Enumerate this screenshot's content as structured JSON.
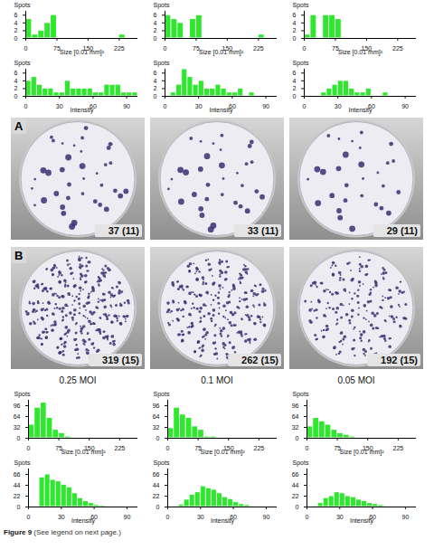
{
  "chart_data": [
    {
      "type": "histogram",
      "ylabel": "Spots",
      "xlabel": "Size [0.01 mm]²",
      "color": "#2ee82e",
      "bins": [
        0,
        15,
        30,
        45,
        60,
        75,
        90,
        105,
        120,
        135,
        150,
        165,
        180,
        195,
        210,
        225,
        240,
        255,
        270
      ],
      "counts": [
        5,
        1,
        2,
        4,
        6,
        0,
        0,
        0,
        0,
        0,
        0,
        0,
        0,
        0,
        0,
        1,
        0,
        0
      ],
      "xlim": [
        0,
        270
      ],
      "xticks": [
        0,
        75,
        150,
        225
      ],
      "ylim": [
        0,
        7
      ],
      "yticks": [
        0,
        2,
        4,
        6
      ]
    },
    {
      "type": "histogram",
      "ylabel": "Spots",
      "xlabel": "Size [0.01 mm]²",
      "color": "#2ee82e",
      "bins": [
        0,
        15,
        30,
        45,
        60,
        75,
        90,
        105,
        120,
        135,
        150,
        165,
        180,
        195,
        210,
        225,
        240,
        255,
        270
      ],
      "counts": [
        6,
        5,
        4,
        0,
        5,
        6,
        0,
        0,
        0,
        0,
        0,
        0,
        0,
        0,
        0,
        1,
        0,
        0
      ],
      "xlim": [
        0,
        270
      ],
      "xticks": [
        0,
        75,
        150,
        225
      ],
      "ylim": [
        0,
        7
      ],
      "yticks": [
        0,
        2,
        4,
        6
      ]
    },
    {
      "type": "histogram",
      "ylabel": "Spots",
      "xlabel": "Size [0.01 mm]²",
      "color": "#2ee82e",
      "bins": [
        0,
        15,
        30,
        45,
        60,
        75,
        90,
        105,
        120,
        135,
        150,
        165,
        180,
        195,
        210,
        225,
        240,
        255,
        270
      ],
      "counts": [
        1,
        6,
        0,
        6,
        6,
        5,
        0,
        0,
        0,
        0,
        0,
        0,
        0,
        0,
        0,
        0,
        0,
        0
      ],
      "xlim": [
        0,
        270
      ],
      "xticks": [
        0,
        75,
        150,
        225
      ],
      "ylim": [
        0,
        7
      ],
      "yticks": [
        0,
        2,
        4,
        6
      ]
    },
    {
      "type": "histogram",
      "ylabel": "Spots",
      "xlabel": "Intensity",
      "color": "#2ee82e",
      "bins": [
        0,
        5,
        10,
        15,
        20,
        25,
        30,
        35,
        40,
        45,
        50,
        55,
        60,
        65,
        70,
        75,
        80,
        85,
        90,
        95,
        100
      ],
      "counts": [
        4,
        5,
        3,
        2,
        2,
        1,
        1,
        4,
        2,
        2,
        2,
        2,
        1,
        1,
        3,
        3,
        3,
        1,
        1,
        1
      ],
      "xlim": [
        0,
        100
      ],
      "xticks": [
        0,
        30,
        60,
        90
      ],
      "ylim": [
        0,
        7
      ],
      "yticks": [
        0,
        2,
        4,
        6
      ]
    },
    {
      "type": "histogram",
      "ylabel": "Spots",
      "xlabel": "Intensity",
      "color": "#2ee82e",
      "bins": [
        0,
        5,
        10,
        15,
        20,
        25,
        30,
        35,
        40,
        45,
        50,
        55,
        60,
        65,
        70,
        75,
        80,
        85,
        90,
        95,
        100
      ],
      "counts": [
        0,
        1,
        3,
        7,
        5,
        3,
        4,
        2,
        2,
        3,
        2,
        1,
        1,
        2,
        0,
        1,
        0,
        0,
        0,
        0
      ],
      "xlim": [
        0,
        100
      ],
      "xticks": [
        0,
        30,
        60,
        90
      ],
      "ylim": [
        0,
        7
      ],
      "yticks": [
        0,
        2,
        4,
        6
      ]
    },
    {
      "type": "histogram",
      "ylabel": "Spots",
      "xlabel": "Intensity",
      "color": "#2ee82e",
      "bins": [
        0,
        5,
        10,
        15,
        20,
        25,
        30,
        35,
        40,
        45,
        50,
        55,
        60,
        65,
        70,
        75,
        80,
        85,
        90,
        95,
        100
      ],
      "counts": [
        0,
        0,
        0,
        1,
        2,
        3,
        4,
        4,
        2,
        1,
        1,
        2,
        0,
        0,
        1,
        0,
        0,
        0,
        0,
        0
      ],
      "xlim": [
        0,
        100
      ],
      "xticks": [
        0,
        30,
        60,
        90
      ],
      "ylim": [
        0,
        7
      ],
      "yticks": [
        0,
        2,
        4,
        6
      ]
    },
    {
      "type": "histogram",
      "ylabel": "Spots",
      "xlabel": "Size [0.01 mm]²",
      "color": "#2ee82e",
      "bins": [
        0,
        15,
        30,
        45,
        60,
        75,
        90,
        105,
        120,
        135,
        150,
        165,
        180,
        195,
        210,
        225,
        240,
        255,
        270
      ],
      "counts": [
        40,
        90,
        105,
        60,
        25,
        15,
        5,
        0,
        0,
        0,
        0,
        0,
        0,
        0,
        0,
        0,
        0,
        0
      ],
      "xlim": [
        0,
        270
      ],
      "xticks": [
        0,
        75,
        150,
        225
      ],
      "ylim": [
        0,
        112
      ],
      "yticks": [
        0,
        32,
        64,
        96
      ]
    },
    {
      "type": "histogram",
      "ylabel": "Spots",
      "xlabel": "Size [0.01 mm]²",
      "color": "#2ee82e",
      "bins": [
        0,
        15,
        30,
        45,
        60,
        75,
        90,
        105,
        120,
        135,
        150,
        165,
        180,
        195,
        210,
        225,
        240,
        255,
        270
      ],
      "counts": [
        30,
        90,
        70,
        60,
        35,
        25,
        5,
        5,
        0,
        0,
        0,
        0,
        0,
        0,
        0,
        0,
        0,
        0
      ],
      "xlim": [
        0,
        270
      ],
      "xticks": [
        0,
        75,
        150,
        225
      ],
      "ylim": [
        0,
        112
      ],
      "yticks": [
        0,
        32,
        64,
        96
      ]
    },
    {
      "type": "histogram",
      "ylabel": "Spots",
      "xlabel": "Size [0.01 mm]²",
      "color": "#2ee82e",
      "bins": [
        0,
        15,
        30,
        45,
        60,
        75,
        90,
        105,
        120,
        135,
        150,
        165,
        180,
        195,
        210,
        225,
        240,
        255,
        270
      ],
      "counts": [
        35,
        60,
        50,
        40,
        25,
        15,
        10,
        5,
        0,
        0,
        0,
        0,
        0,
        0,
        0,
        0,
        0,
        0
      ],
      "xlim": [
        0,
        270
      ],
      "xticks": [
        0,
        75,
        150,
        225
      ],
      "ylim": [
        0,
        112
      ],
      "yticks": [
        0,
        32,
        64,
        96
      ]
    },
    {
      "type": "histogram",
      "ylabel": "Spots",
      "xlabel": "Intensity",
      "color": "#2ee82e",
      "bins": [
        0,
        5,
        10,
        15,
        20,
        25,
        30,
        35,
        40,
        45,
        50,
        55,
        60,
        65,
        70,
        75,
        80,
        85,
        90,
        95,
        100
      ],
      "counts": [
        0,
        0,
        60,
        66,
        55,
        52,
        45,
        40,
        28,
        18,
        12,
        8,
        4,
        3,
        2,
        1,
        1,
        0,
        0,
        0
      ],
      "xlim": [
        0,
        100
      ],
      "xticks": [
        0,
        30,
        60,
        90
      ],
      "ylim": [
        0,
        77
      ],
      "yticks": [
        0,
        22,
        44,
        66
      ]
    },
    {
      "type": "histogram",
      "ylabel": "Spots",
      "xlabel": "Intensity",
      "color": "#2ee82e",
      "bins": [
        0,
        5,
        10,
        15,
        20,
        25,
        30,
        35,
        40,
        45,
        50,
        55,
        60,
        65,
        70,
        75,
        80,
        85,
        90,
        95,
        100
      ],
      "counts": [
        0,
        0,
        5,
        15,
        25,
        30,
        42,
        38,
        35,
        28,
        20,
        16,
        10,
        6,
        4,
        2,
        1,
        0,
        0,
        0
      ],
      "xlim": [
        0,
        100
      ],
      "xticks": [
        0,
        30,
        60,
        90
      ],
      "ylim": [
        0,
        77
      ],
      "yticks": [
        0,
        22,
        44,
        66
      ]
    },
    {
      "type": "histogram",
      "ylabel": "Spots",
      "xlabel": "Intensity",
      "color": "#2ee82e",
      "bins": [
        0,
        5,
        10,
        15,
        20,
        25,
        30,
        35,
        40,
        45,
        50,
        55,
        60,
        65,
        70,
        75,
        80,
        85,
        90,
        95,
        100
      ],
      "counts": [
        0,
        2,
        8,
        18,
        22,
        30,
        28,
        22,
        20,
        15,
        12,
        8,
        6,
        4,
        2,
        1,
        1,
        0,
        0,
        0
      ],
      "xlim": [
        0,
        100
      ],
      "xticks": [
        0,
        30,
        60,
        90
      ],
      "ylim": [
        0,
        77
      ],
      "yticks": [
        0,
        22,
        44,
        66
      ]
    }
  ],
  "panels": [
    {
      "letter": "A",
      "wells": [
        {
          "spots": 37,
          "label": "37 (11)"
        },
        {
          "spots": 33,
          "label": "33 (11)"
        },
        {
          "spots": 29,
          "label": "29 (11)"
        }
      ]
    },
    {
      "letter": "B",
      "wells": [
        {
          "spots": 319,
          "label": "319 (15)"
        },
        {
          "spots": 262,
          "label": "262 (15)"
        },
        {
          "spots": 192,
          "label": "192 (15)"
        }
      ]
    }
  ],
  "conditions": [
    "0.25 MOI",
    "0.1 MOI",
    "0.05 MOI"
  ],
  "caption": {
    "label": "Figure 9",
    "text": "(See legend on next page.)"
  }
}
